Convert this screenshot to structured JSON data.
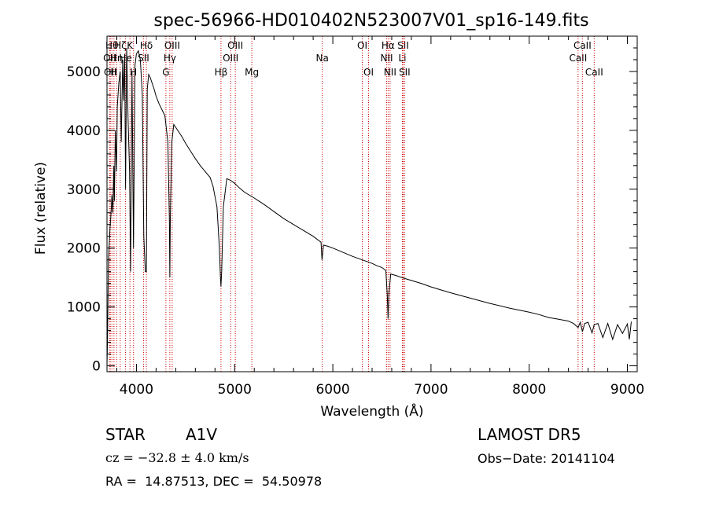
{
  "chart_data": {
    "type": "line",
    "title": "spec-56966-HD010402N523007V01_sp16-149.fits",
    "xlabel": "Wavelength (Å)",
    "ylabel": "Flux (relative)",
    "xlim": [
      3700,
      9100
    ],
    "ylim": [
      -100,
      5600
    ],
    "xticks": [
      4000,
      5000,
      6000,
      7000,
      8000,
      9000
    ],
    "yticks": [
      0,
      1000,
      2000,
      3000,
      4000,
      5000
    ],
    "grid": false,
    "legend": "none",
    "line_color": "#000000",
    "marker_color": "#cc0000",
    "series": [
      {
        "x": [
          3700,
          3705,
          3715,
          3730,
          3745,
          3750,
          3760,
          3770,
          3775,
          3785,
          3797,
          3805,
          3820,
          3835,
          3845,
          3860,
          3870,
          3880,
          3889,
          3900,
          3915,
          3930,
          3940,
          3955,
          3970,
          3985,
          4000,
          4020,
          4040,
          4060,
          4075,
          4090,
          4101,
          4110,
          4125,
          4140,
          4160,
          4180,
          4200,
          4230,
          4260,
          4290,
          4320,
          4335,
          4340,
          4345,
          4360,
          4380,
          4420,
          4460,
          4500,
          4550,
          4600,
          4650,
          4700,
          4750,
          4780,
          4820,
          4845,
          4855,
          4861,
          4868,
          4885,
          4920,
          4960,
          5000,
          5050,
          5100,
          5200,
          5300,
          5400,
          5500,
          5600,
          5700,
          5800,
          5880,
          5890,
          5896,
          5905,
          5950,
          6000,
          6100,
          6200,
          6300,
          6400,
          6450,
          6500,
          6540,
          6555,
          6563,
          6570,
          6590,
          6650,
          6700,
          6800,
          6900,
          7000,
          7200,
          7400,
          7600,
          7800,
          8000,
          8100,
          8200,
          8300,
          8400,
          8450,
          8498,
          8520,
          8542,
          8565,
          8600,
          8640,
          8662,
          8700,
          8750,
          8800,
          8850,
          8900,
          8950,
          9000,
          9020,
          9040
        ],
        "y": [
          0,
          400,
          1800,
          2300,
          2700,
          2900,
          2600,
          3400,
          2800,
          4000,
          3300,
          4400,
          4800,
          5000,
          3800,
          5200,
          4500,
          5300,
          3000,
          5400,
          4200,
          3300,
          1600,
          5000,
          2000,
          5100,
          5300,
          5350,
          5200,
          4600,
          2200,
          1600,
          1600,
          4700,
          4950,
          4900,
          4800,
          4700,
          4580,
          4450,
          4350,
          4250,
          3800,
          2500,
          1500,
          2500,
          3800,
          4100,
          4000,
          3900,
          3780,
          3650,
          3520,
          3400,
          3300,
          3200,
          3050,
          2700,
          2000,
          1500,
          1350,
          1600,
          2700,
          3180,
          3150,
          3100,
          3020,
          2950,
          2850,
          2740,
          2620,
          2500,
          2400,
          2300,
          2200,
          2100,
          1800,
          1900,
          2050,
          2030,
          2000,
          1930,
          1860,
          1800,
          1740,
          1700,
          1670,
          1620,
          1200,
          800,
          1200,
          1560,
          1530,
          1500,
          1450,
          1400,
          1340,
          1240,
          1150,
          1060,
          980,
          910,
          870,
          820,
          790,
          760,
          720,
          650,
          740,
          580,
          720,
          740,
          560,
          700,
          720,
          480,
          720,
          450,
          700,
          550,
          710,
          450,
          750
        ]
      }
    ],
    "line_markers": [
      {
        "wl": 3727,
        "label": "OII",
        "row": 2
      },
      {
        "wl": 3734,
        "label": "OII",
        "row": 3
      },
      {
        "wl": 3750,
        "label": "Hθ",
        "row": 1
      },
      {
        "wl": 3771,
        "label": "H",
        "row": 3
      },
      {
        "wl": 3798,
        "label": "Hη",
        "row": 2
      },
      {
        "wl": 3835,
        "label": "Hζ",
        "row": 1
      },
      {
        "wl": 3889,
        "label": "He",
        "row": 2
      },
      {
        "wl": 3934,
        "label": "K",
        "row": 1
      },
      {
        "wl": 3970,
        "label": "H",
        "row": 3
      },
      {
        "wl": 4072,
        "label": "SII",
        "row": 2
      },
      {
        "wl": 4101,
        "label": "Hδ",
        "row": 1
      },
      {
        "wl": 4300,
        "label": "G",
        "row": 3
      },
      {
        "wl": 4340,
        "label": "Hγ",
        "row": 2
      },
      {
        "wl": 4364,
        "label": "OIII",
        "row": 1
      },
      {
        "wl": 4861,
        "label": "Hβ",
        "row": 3
      },
      {
        "wl": 4959,
        "label": "OIII",
        "row": 2
      },
      {
        "wl": 5007,
        "label": "OIII",
        "row": 1
      },
      {
        "wl": 5175,
        "label": "Mg",
        "row": 3
      },
      {
        "wl": 5893,
        "label": "Na",
        "row": 2
      },
      {
        "wl": 6300,
        "label": "OI",
        "row": 1
      },
      {
        "wl": 6364,
        "label": "OI",
        "row": 3
      },
      {
        "wl": 6548,
        "label": "NII",
        "row": 2
      },
      {
        "wl": 6563,
        "label": "Hα",
        "row": 1
      },
      {
        "wl": 6583,
        "label": "NII",
        "row": 3
      },
      {
        "wl": 6708,
        "label": "Li",
        "row": 2
      },
      {
        "wl": 6716,
        "label": "SII",
        "row": 1
      },
      {
        "wl": 6731,
        "label": "SII",
        "row": 3
      },
      {
        "wl": 8498,
        "label": "CaII",
        "row": 2
      },
      {
        "wl": 8542,
        "label": "CaII",
        "row": 1
      },
      {
        "wl": 8662,
        "label": "CaII",
        "row": 3
      }
    ]
  },
  "info": {
    "object_type": "STAR",
    "subclass": "A1V",
    "survey": "LAMOST DR5",
    "redshift": "cz = −32.8 ± 4.0 km/s",
    "obs_date": "Obs−Date: 20141104",
    "coordinates": "RA =  14.87513, DEC =  54.50978"
  }
}
